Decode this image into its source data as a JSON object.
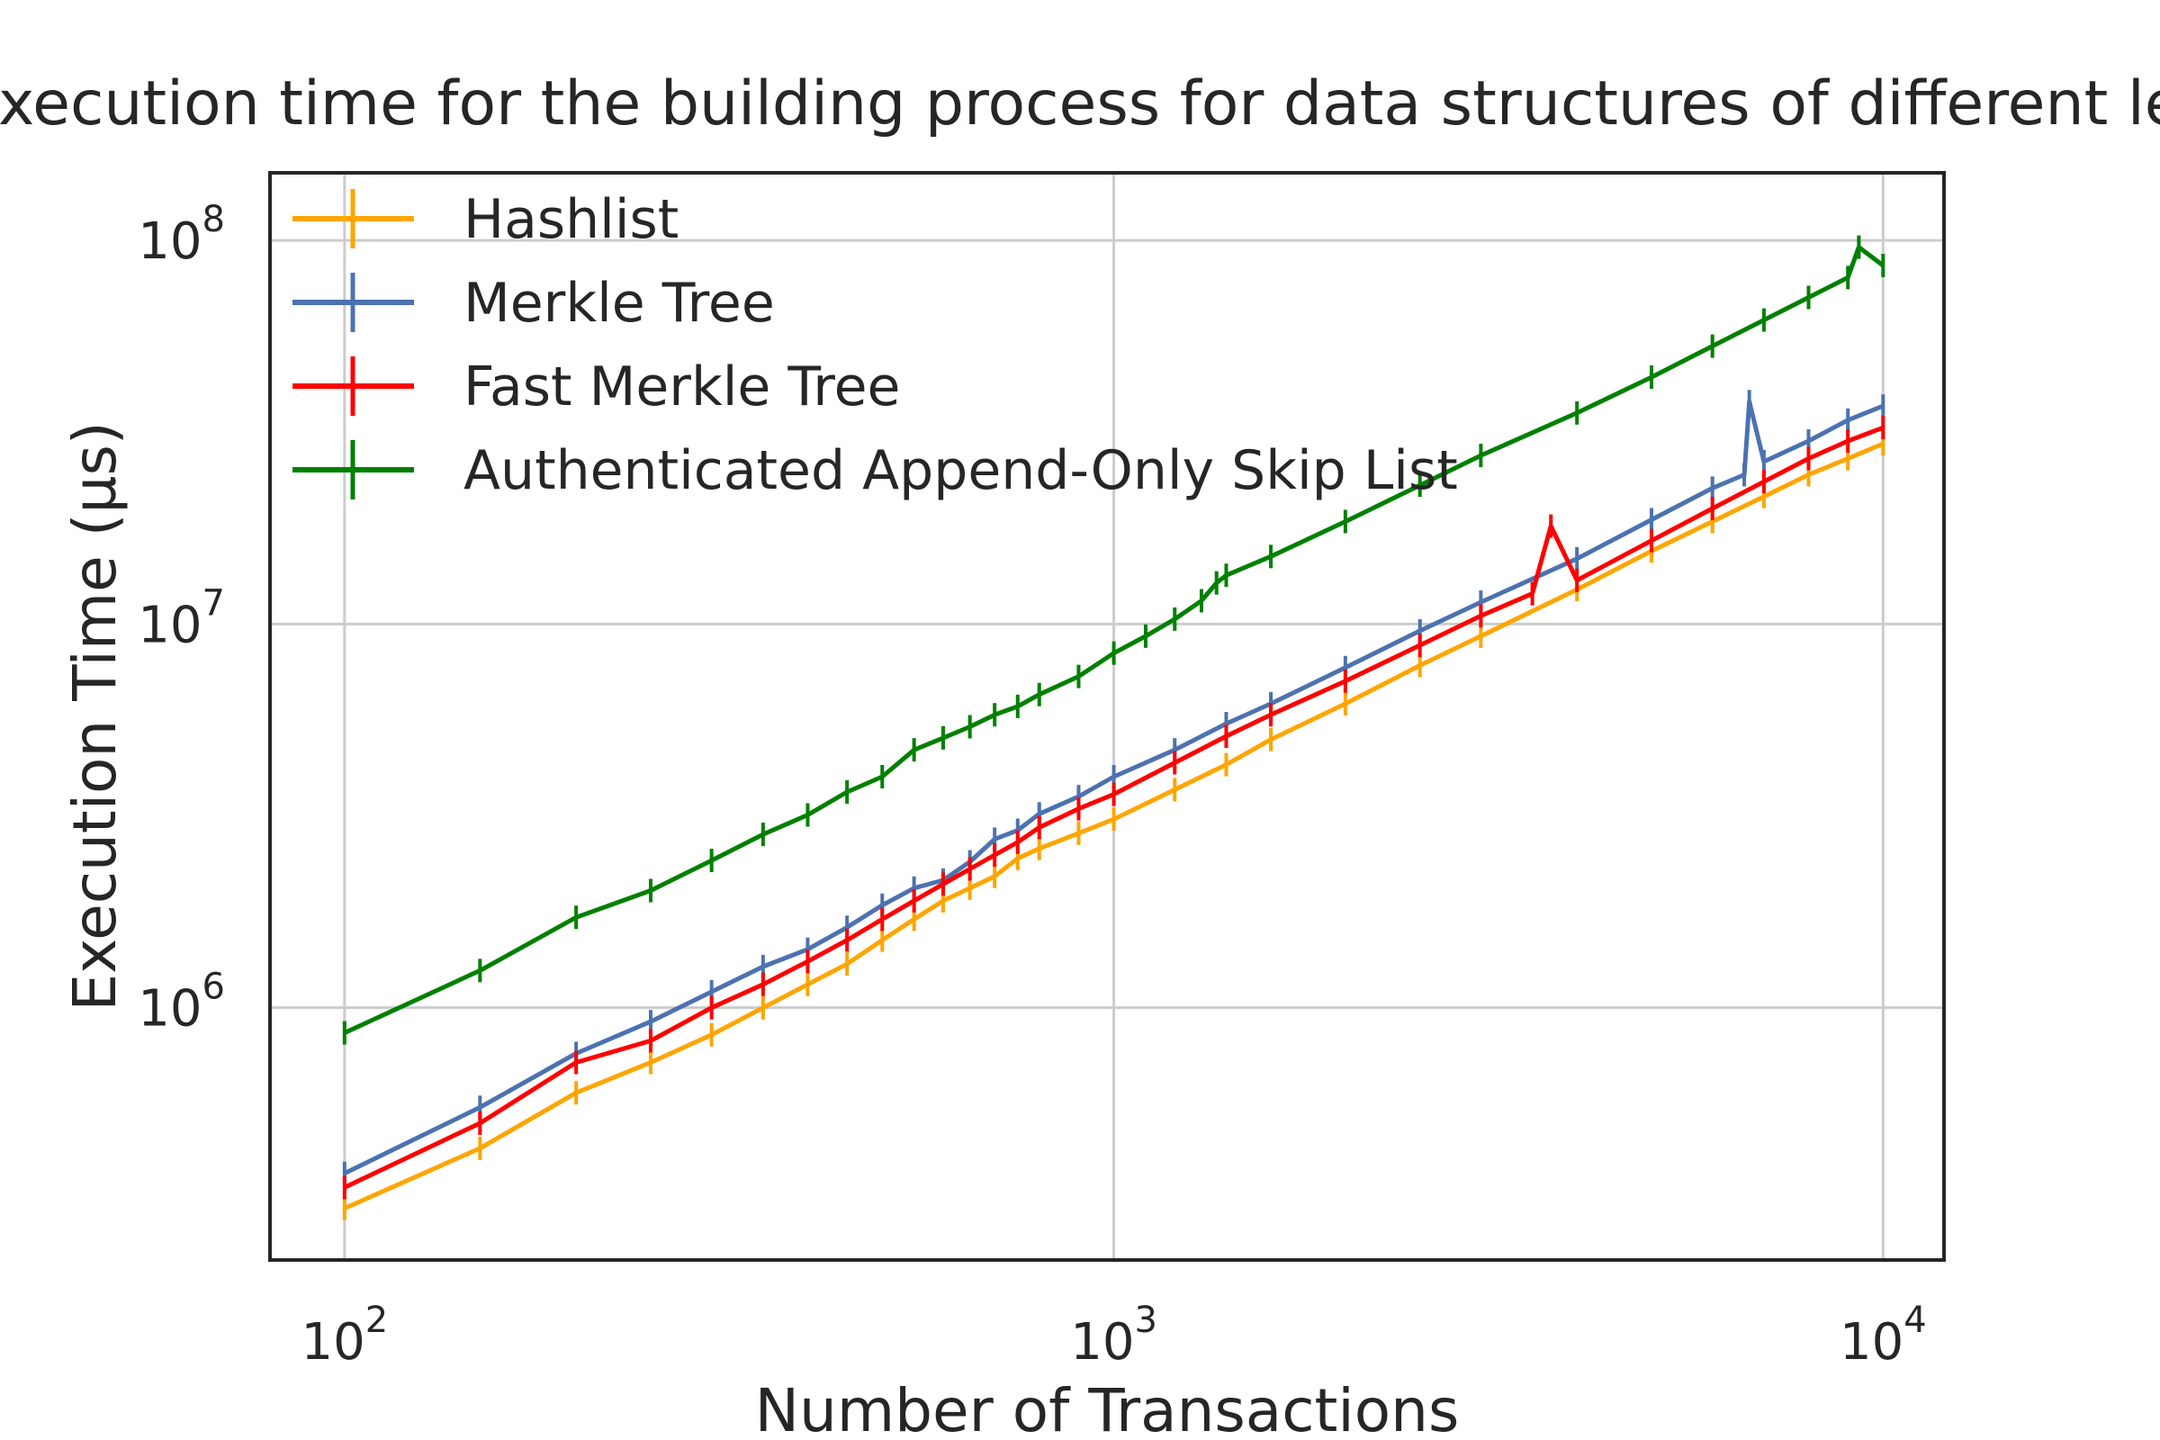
{
  "chart_data": {
    "type": "line",
    "title": "Execution time for the building process for data structures of different lengths",
    "xlabel": "Number of Transactions",
    "ylabel": "Execution Time (µs)",
    "xscale": "log",
    "yscale": "log",
    "xlim": [
      80,
      12000
    ],
    "ylim": [
      220000,
      150000000
    ],
    "grid": true,
    "legend_position": "top-left",
    "x_ticks": [
      {
        "value": 100,
        "base": "10",
        "exp": "2"
      },
      {
        "value": 1000,
        "base": "10",
        "exp": "3"
      },
      {
        "value": 10000,
        "base": "10",
        "exp": "4"
      }
    ],
    "y_ticks": [
      {
        "value": 1000000,
        "base": "10",
        "exp": "6"
      },
      {
        "value": 10000000,
        "base": "10",
        "exp": "7"
      },
      {
        "value": 100000000,
        "base": "10",
        "exp": "8"
      }
    ],
    "series": [
      {
        "name": "Hashlist",
        "color": "#ffa500",
        "x": [
          100,
          150,
          200,
          250,
          300,
          350,
          400,
          450,
          500,
          550,
          600,
          650,
          700,
          750,
          800,
          900,
          1000,
          1200,
          1400,
          1600,
          2000,
          2500,
          3000,
          4000,
          5000,
          6000,
          7000,
          8000,
          9000,
          10000
        ],
        "y": [
          300000,
          430000,
          600000,
          720000,
          850000,
          1000000,
          1150000,
          1300000,
          1500000,
          1700000,
          1900000,
          2050000,
          2200000,
          2450000,
          2600000,
          2850000,
          3100000,
          3700000,
          4300000,
          5000000,
          6200000,
          7800000,
          9300000,
          12300000,
          15500000,
          18500000,
          21500000,
          24500000,
          27000000,
          29500000
        ]
      },
      {
        "name": "Merkle Tree",
        "color": "#4c72b0",
        "x": [
          100,
          150,
          200,
          250,
          300,
          350,
          400,
          450,
          500,
          550,
          600,
          650,
          700,
          750,
          800,
          900,
          1000,
          1200,
          1400,
          1600,
          2000,
          2500,
          3000,
          4000,
          5000,
          6000,
          6600,
          6700,
          7000,
          8000,
          9000,
          10000
        ],
        "y": [
          370000,
          550000,
          760000,
          920000,
          1100000,
          1280000,
          1420000,
          1620000,
          1850000,
          2050000,
          2150000,
          2400000,
          2750000,
          2900000,
          3200000,
          3550000,
          4000000,
          4700000,
          5500000,
          6200000,
          7700000,
          9600000,
          11400000,
          14800000,
          18700000,
          22600000,
          24500000,
          38000000,
          26500000,
          30000000,
          34000000,
          37000000
        ]
      },
      {
        "name": "Fast Merkle Tree",
        "color": "#ff0000",
        "x": [
          100,
          150,
          200,
          250,
          300,
          350,
          400,
          450,
          500,
          550,
          600,
          650,
          700,
          750,
          800,
          900,
          1000,
          1200,
          1400,
          1600,
          2000,
          2500,
          3000,
          3500,
          3700,
          4000,
          5000,
          6000,
          7000,
          8000,
          9000,
          10000
        ],
        "y": [
          340000,
          500000,
          720000,
          820000,
          1000000,
          1150000,
          1320000,
          1500000,
          1700000,
          1900000,
          2100000,
          2300000,
          2500000,
          2700000,
          2950000,
          3300000,
          3600000,
          4350000,
          5100000,
          5800000,
          7100000,
          8800000,
          10500000,
          12000000,
          18000000,
          13000000,
          16500000,
          20000000,
          23500000,
          27000000,
          30000000,
          32500000
        ]
      },
      {
        "name": "Authenticated Append-Only Skip List",
        "color": "#008000",
        "x": [
          100,
          150,
          200,
          250,
          300,
          350,
          400,
          450,
          500,
          550,
          600,
          650,
          700,
          750,
          800,
          900,
          1000,
          1100,
          1200,
          1300,
          1360,
          1400,
          1600,
          2000,
          2500,
          3000,
          4000,
          5000,
          6000,
          7000,
          8000,
          9000,
          9300,
          10000
        ],
        "y": [
          860000,
          1250000,
          1720000,
          2020000,
          2420000,
          2830000,
          3180000,
          3650000,
          4000000,
          4700000,
          5050000,
          5400000,
          5800000,
          6100000,
          6550000,
          7300000,
          8400000,
          9300000,
          10300000,
          11500000,
          12800000,
          13400000,
          15000000,
          18500000,
          23000000,
          27500000,
          35500000,
          44000000,
          53000000,
          62000000,
          71000000,
          80000000,
          96000000,
          86000000
        ]
      }
    ]
  }
}
